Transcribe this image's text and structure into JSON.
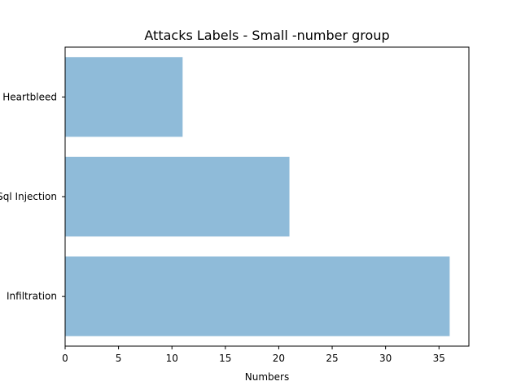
{
  "chart_data": {
    "type": "bar",
    "orientation": "horizontal",
    "title": "Attacks Labels - Small -number group",
    "xlabel": "Numbers",
    "ylabel": "",
    "categories": [
      "Heartbleed",
      "Sql Injection",
      "Infiltration"
    ],
    "values": [
      11,
      21,
      36
    ],
    "xlim": [
      0,
      37.8
    ],
    "xticks": [
      0,
      5,
      10,
      15,
      20,
      25,
      30,
      35
    ],
    "grid": false,
    "bar_color": "#8fbbd9"
  }
}
